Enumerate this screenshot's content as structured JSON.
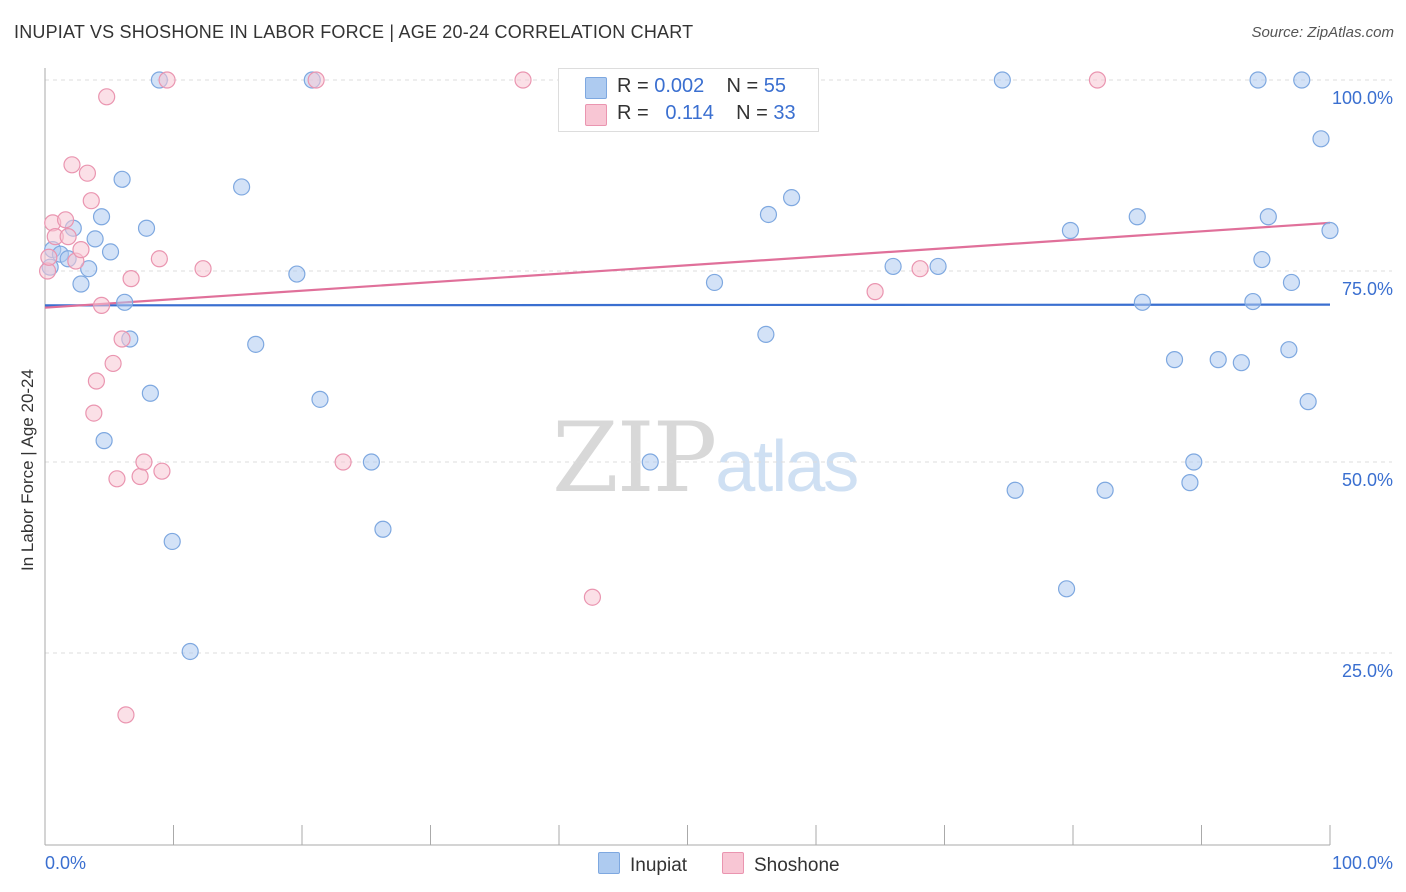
{
  "title": "INUPIAT VS SHOSHONE IN LABOR FORCE | AGE 20-24 CORRELATION CHART",
  "source": "Source: ZipAtlas.com",
  "watermark": {
    "zip": "ZIP",
    "atlas": "atlas"
  },
  "legend": {
    "rows": [
      {
        "r_label": "R =",
        "r_value": "0.002",
        "n_label": "N =",
        "n_value": "55",
        "color": "#aecbf0",
        "border": "#7ea8e0"
      },
      {
        "r_label": "R =",
        "r_value": "0.114",
        "n_label": "N =",
        "n_value": "33",
        "color": "#f8c6d4",
        "border": "#ea95b0"
      }
    ]
  },
  "bottom_legend": [
    {
      "label": "Inupiat",
      "color": "#aecbf0",
      "border": "#7ea8e0"
    },
    {
      "label": "Shoshone",
      "color": "#f8c6d4",
      "border": "#ea95b0"
    }
  ],
  "chart_data": {
    "type": "scatter",
    "title": "INUPIAT VS SHOSHONE IN LABOR FORCE | AGE 20-24 CORRELATION CHART",
    "xlabel": "",
    "ylabel": "In Labor Force | Age 20-24",
    "xlim": [
      0,
      100
    ],
    "ylim": [
      0,
      102
    ],
    "x_tick_labels": [
      "0.0%",
      "100.0%"
    ],
    "y_ticks": [
      25,
      50,
      75,
      100
    ],
    "y_tick_labels": [
      "25.0%",
      "50.0%",
      "75.0%",
      "100.0%"
    ],
    "grid": true,
    "series": [
      {
        "name": "Inupiat",
        "color": "#7ea8e0",
        "fill": "#aecbf0",
        "line_color": "#3a6fd0",
        "trend": [
          [
            0,
            70.5
          ],
          [
            100,
            70.6
          ]
        ],
        "points": [
          [
            0.4,
            75.5
          ],
          [
            0.6,
            77.8
          ],
          [
            1.2,
            77.2
          ],
          [
            1.8,
            76.6
          ],
          [
            2.2,
            80.6
          ],
          [
            2.8,
            73.3
          ],
          [
            3.4,
            75.3
          ],
          [
            3.9,
            79.2
          ],
          [
            4.4,
            82.1
          ],
          [
            4.6,
            52.8
          ],
          [
            5.1,
            77.5
          ],
          [
            6.0,
            87.0
          ],
          [
            6.2,
            70.9
          ],
          [
            6.6,
            66.1
          ],
          [
            7.9,
            80.6
          ],
          [
            8.2,
            59.0
          ],
          [
            8.9,
            100.0
          ],
          [
            9.9,
            39.6
          ],
          [
            11.3,
            25.2
          ],
          [
            15.3,
            86.0
          ],
          [
            16.4,
            65.4
          ],
          [
            19.6,
            74.6
          ],
          [
            20.8,
            100.0
          ],
          [
            21.4,
            58.2
          ],
          [
            25.4,
            50.0
          ],
          [
            26.3,
            41.2
          ],
          [
            47.1,
            50.0
          ],
          [
            52.1,
            73.5
          ],
          [
            56.1,
            66.7
          ],
          [
            56.3,
            82.4
          ],
          [
            58.1,
            84.6
          ],
          [
            66.0,
            75.6
          ],
          [
            69.5,
            75.6
          ],
          [
            74.5,
            100.0
          ],
          [
            75.5,
            46.3
          ],
          [
            79.5,
            33.4
          ],
          [
            79.8,
            80.3
          ],
          [
            82.5,
            46.3
          ],
          [
            85.0,
            82.1
          ],
          [
            85.4,
            70.9
          ],
          [
            87.9,
            63.4
          ],
          [
            89.1,
            47.3
          ],
          [
            89.4,
            50.0
          ],
          [
            91.3,
            63.4
          ],
          [
            93.1,
            63.0
          ],
          [
            94.0,
            71.0
          ],
          [
            94.4,
            100.0
          ],
          [
            94.7,
            76.5
          ],
          [
            95.2,
            82.1
          ],
          [
            96.8,
            64.7
          ],
          [
            97.0,
            73.5
          ],
          [
            97.8,
            100.0
          ],
          [
            98.3,
            57.9
          ],
          [
            99.3,
            92.3
          ],
          [
            100.0,
            80.3
          ]
        ]
      },
      {
        "name": "Shoshone",
        "color": "#ea95b0",
        "fill": "#f8c6d4",
        "line_color": "#e0709a",
        "trend": [
          [
            0,
            70.2
          ],
          [
            100,
            81.3
          ]
        ],
        "points": [
          [
            0.2,
            75.0
          ],
          [
            0.6,
            81.3
          ],
          [
            0.8,
            79.5
          ],
          [
            1.6,
            81.7
          ],
          [
            1.8,
            79.5
          ],
          [
            2.1,
            88.9
          ],
          [
            2.4,
            76.3
          ],
          [
            2.8,
            77.8
          ],
          [
            3.3,
            87.8
          ],
          [
            3.6,
            84.2
          ],
          [
            3.8,
            56.4
          ],
          [
            4.0,
            60.6
          ],
          [
            4.4,
            70.5
          ],
          [
            4.8,
            97.8
          ],
          [
            5.3,
            62.9
          ],
          [
            5.6,
            47.8
          ],
          [
            6.0,
            66.1
          ],
          [
            6.3,
            16.9
          ],
          [
            6.7,
            74.0
          ],
          [
            7.4,
            48.1
          ],
          [
            7.7,
            50.0
          ],
          [
            8.9,
            76.6
          ],
          [
            9.1,
            48.8
          ],
          [
            9.5,
            100.0
          ],
          [
            12.3,
            75.3
          ],
          [
            21.1,
            100.0
          ],
          [
            23.2,
            50.0
          ],
          [
            37.2,
            100.0
          ],
          [
            42.6,
            32.3
          ],
          [
            64.6,
            72.3
          ],
          [
            68.1,
            75.3
          ],
          [
            81.9,
            100.0
          ],
          [
            0.3,
            76.8
          ]
        ]
      }
    ]
  }
}
